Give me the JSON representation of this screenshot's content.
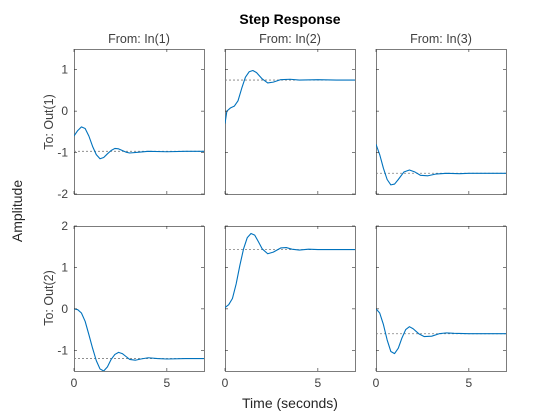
{
  "chart_data": {
    "type": "line",
    "title": "Step Response",
    "xlabel": "Time (seconds)",
    "ylabel": "Amplitude",
    "column_labels": [
      "From: In(1)",
      "From: In(2)",
      "From: In(3)"
    ],
    "row_labels": [
      "To: Out(1)",
      "To: Out(2)"
    ],
    "xlim": [
      0,
      7
    ],
    "xticks": [
      0,
      5
    ],
    "rows": [
      {
        "ylim": [
          -2,
          1.5
        ],
        "yticks": [
          -2,
          -1,
          0,
          1
        ]
      },
      {
        "ylim": [
          -1.5,
          2
        ],
        "yticks": [
          -1,
          0,
          1,
          2
        ]
      }
    ],
    "colors": {
      "response": "#0072BD",
      "steady_state": "#7f7f7f",
      "axes": "#262626",
      "text": "#262626",
      "tick_text": "#404040"
    },
    "panels": [
      {
        "row": 0,
        "col": 0,
        "final_value": -0.97,
        "x": [
          0,
          0.2,
          0.4,
          0.6,
          0.8,
          1.0,
          1.2,
          1.4,
          1.6,
          1.8,
          2.0,
          2.2,
          2.4,
          2.6,
          2.8,
          3.0,
          3.5,
          4,
          5,
          6,
          7
        ],
        "y": [
          -0.6,
          -0.47,
          -0.38,
          -0.42,
          -0.6,
          -0.85,
          -1.05,
          -1.15,
          -1.12,
          -1.03,
          -0.95,
          -0.9,
          -0.91,
          -0.95,
          -0.99,
          -1.01,
          -0.99,
          -0.97,
          -0.98,
          -0.97,
          -0.97
        ]
      },
      {
        "row": 0,
        "col": 1,
        "final_value": 0.75,
        "x": [
          0,
          0.1,
          0.3,
          0.5,
          0.7,
          0.9,
          1.1,
          1.3,
          1.5,
          1.7,
          2.0,
          2.3,
          2.6,
          3.0,
          3.5,
          4,
          5,
          6,
          7
        ],
        "y": [
          -0.3,
          0.0,
          0.08,
          0.12,
          0.25,
          0.55,
          0.82,
          0.95,
          0.98,
          0.93,
          0.78,
          0.68,
          0.7,
          0.76,
          0.77,
          0.75,
          0.76,
          0.75,
          0.75
        ]
      },
      {
        "row": 0,
        "col": 2,
        "final_value": -1.5,
        "x": [
          0,
          0.2,
          0.4,
          0.6,
          0.8,
          1.0,
          1.2,
          1.5,
          1.8,
          2.1,
          2.4,
          2.8,
          3.2,
          3.8,
          4.5,
          5,
          6,
          7
        ],
        "y": [
          -0.8,
          -1.05,
          -1.38,
          -1.65,
          -1.78,
          -1.76,
          -1.65,
          -1.47,
          -1.42,
          -1.47,
          -1.55,
          -1.56,
          -1.52,
          -1.5,
          -1.51,
          -1.5,
          -1.5,
          -1.5
        ]
      },
      {
        "row": 1,
        "col": 0,
        "final_value": -1.2,
        "x": [
          0,
          0.2,
          0.4,
          0.6,
          0.8,
          1.0,
          1.2,
          1.4,
          1.6,
          1.8,
          2.0,
          2.2,
          2.4,
          2.6,
          2.8,
          3.0,
          3.3,
          3.6,
          4,
          4.5,
          5,
          6,
          7
        ],
        "y": [
          0.0,
          -0.02,
          -0.1,
          -0.3,
          -0.62,
          -0.95,
          -1.25,
          -1.45,
          -1.5,
          -1.4,
          -1.22,
          -1.1,
          -1.05,
          -1.08,
          -1.15,
          -1.22,
          -1.24,
          -1.21,
          -1.18,
          -1.2,
          -1.21,
          -1.2,
          -1.2
        ]
      },
      {
        "row": 1,
        "col": 1,
        "final_value": 1.43,
        "x": [
          0,
          0.2,
          0.4,
          0.6,
          0.8,
          1.0,
          1.2,
          1.4,
          1.6,
          1.8,
          2.0,
          2.3,
          2.6,
          3.0,
          3.3,
          3.6,
          4,
          4.5,
          5,
          6,
          7
        ],
        "y": [
          0.03,
          0.1,
          0.25,
          0.6,
          1.05,
          1.45,
          1.72,
          1.82,
          1.78,
          1.62,
          1.45,
          1.33,
          1.37,
          1.47,
          1.48,
          1.44,
          1.42,
          1.44,
          1.43,
          1.43,
          1.43
        ]
      },
      {
        "row": 1,
        "col": 2,
        "final_value": -0.6,
        "x": [
          0,
          0.2,
          0.4,
          0.6,
          0.8,
          1.0,
          1.2,
          1.4,
          1.6,
          1.8,
          2.0,
          2.3,
          2.6,
          3.0,
          3.4,
          3.8,
          4.2,
          5,
          6,
          7
        ],
        "y": [
          0.0,
          -0.1,
          -0.38,
          -0.75,
          -1.03,
          -1.08,
          -0.95,
          -0.7,
          -0.5,
          -0.43,
          -0.48,
          -0.6,
          -0.67,
          -0.66,
          -0.6,
          -0.58,
          -0.59,
          -0.6,
          -0.6,
          -0.6
        ]
      }
    ]
  }
}
